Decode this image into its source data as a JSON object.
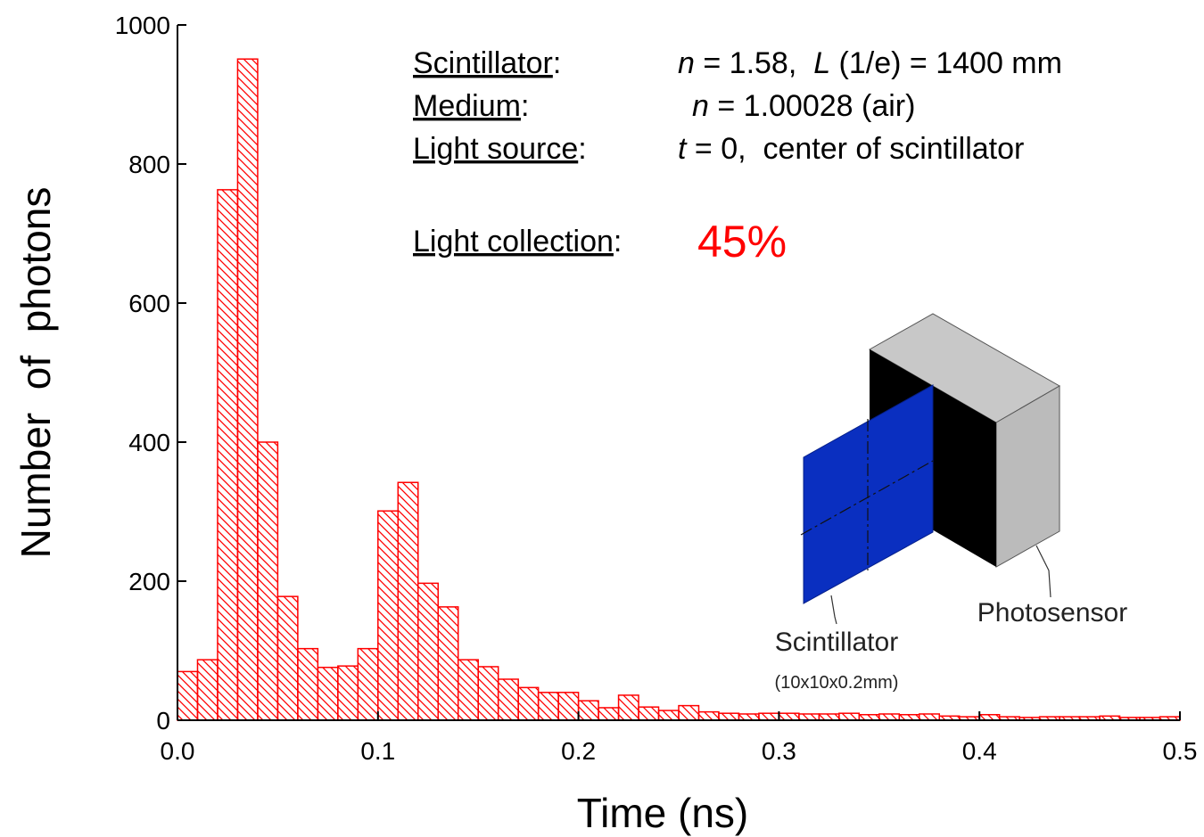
{
  "chart_data": {
    "type": "histogram",
    "x_label": "Time (ns)",
    "y_label": "Number  of  photons",
    "bins": [
      0,
      0.01,
      0.02,
      0.03,
      0.04,
      0.05,
      0.06,
      0.07,
      0.08,
      0.09,
      0.1,
      0.11,
      0.12,
      0.13,
      0.14,
      0.15,
      0.16,
      0.17,
      0.18,
      0.19,
      0.2,
      0.21,
      0.22,
      0.23,
      0.24,
      0.25,
      0.26,
      0.27,
      0.28,
      0.29,
      0.3,
      0.31,
      0.32,
      0.33,
      0.34,
      0.35,
      0.36,
      0.37,
      0.38,
      0.39,
      0.4,
      0.41,
      0.42,
      0.43,
      0.44,
      0.45,
      0.46,
      0.47,
      0.48,
      0.49,
      0.5
    ],
    "values": [
      70,
      87,
      763,
      951,
      400,
      178,
      103,
      76,
      78,
      103,
      301,
      342,
      197,
      163,
      87,
      77,
      59,
      47,
      40,
      40,
      28,
      18,
      36,
      19,
      14,
      21,
      12,
      10,
      9,
      10,
      10,
      9,
      9,
      10,
      8,
      9,
      8,
      9,
      6,
      5,
      8,
      5,
      4,
      5,
      5,
      5,
      6,
      4,
      4,
      5
    ],
    "color": "#ff0000",
    "xlim": [
      0,
      0.5
    ],
    "xticks": [
      {
        "value": 0,
        "label": "0.0"
      },
      0.1,
      0.2,
      0.3,
      0.4,
      0.5
    ],
    "ylim": [
      0,
      1000
    ],
    "yticks": [
      0,
      200,
      400,
      600,
      800,
      1000
    ],
    "annotations": {
      "scintillator_label": "Scintillator",
      "scintillator_value": [
        "n",
        " = 1.58,  ",
        "L",
        " (1/e) = 1400 mm"
      ],
      "medium_label": "Medium",
      "medium_value": [
        "n",
        " = 1.00028 (air)"
      ],
      "source_label": "Light source",
      "source_value": [
        "t",
        " = 0,  center of scintillator"
      ],
      "collection_label": "Light collection",
      "collection_value": "45%",
      "colon": ":"
    },
    "diagram": {
      "scintillator": "Scintillator",
      "scintillator_size": "(10x10x0.2mm)",
      "photosensor": "Photosensor"
    }
  }
}
